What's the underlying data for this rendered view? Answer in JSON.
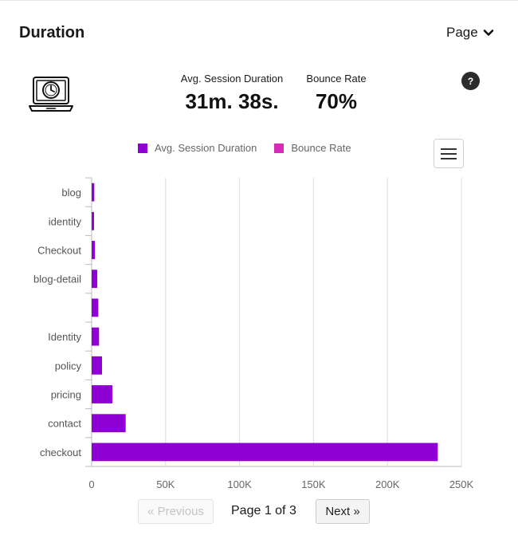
{
  "header": {
    "title": "Duration",
    "page_select": "Page"
  },
  "stats": [
    {
      "label": "Avg. Session Duration",
      "value": "31m. 38s."
    },
    {
      "label": "Bounce Rate",
      "value": "70%"
    }
  ],
  "help_icon": "?",
  "legend": [
    {
      "name": "Avg. Session Duration",
      "color": "#8f00d5"
    },
    {
      "name": "Bounce Rate",
      "color": "#d62bb9"
    }
  ],
  "chart_data": {
    "type": "bar",
    "orientation": "horizontal",
    "categories": [
      "blog",
      "identity",
      "Checkout",
      "blog-detail",
      "",
      "Identity",
      "policy",
      "pricing",
      "contact",
      "checkout"
    ],
    "series": [
      {
        "name": "Avg. Session Duration",
        "color": "#8f00d5",
        "values": [
          1800,
          1600,
          2200,
          3800,
          4500,
          5000,
          7000,
          14000,
          23000,
          234000
        ]
      },
      {
        "name": "Bounce Rate",
        "color": "#d62bb9",
        "values": [
          0,
          0,
          0,
          0,
          0,
          0,
          0,
          0,
          0,
          0
        ]
      }
    ],
    "xlim": [
      0,
      250000
    ],
    "xticks": [
      0,
      50000,
      100000,
      150000,
      200000,
      250000
    ],
    "xtick_labels": [
      "0",
      "50K",
      "100K",
      "150K",
      "200K",
      "250K"
    ],
    "grid": true,
    "legend_position": "top"
  },
  "pagination": {
    "prev": "« Previous",
    "info": "Page 1 of 3",
    "next": "Next »"
  }
}
